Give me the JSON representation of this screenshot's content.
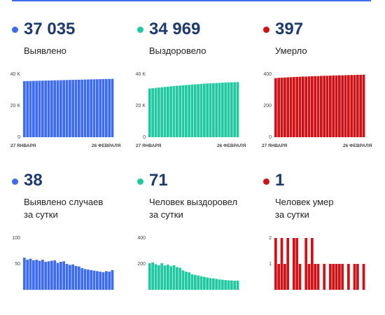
{
  "colors": {
    "blue": "#3d6cf0",
    "green": "#21c9a2",
    "red": "#d11116",
    "accent": "#3d6cf0",
    "number": "#1c3a6e"
  },
  "cards": [
    {
      "value": "37 035",
      "label_lines": [
        "Выявлено"
      ],
      "color": "#3d6cf0"
    },
    {
      "value": "34 969",
      "label_lines": [
        "Выздоровело"
      ],
      "color": "#21c9a2"
    },
    {
      "value": "397",
      "label_lines": [
        "Умерло"
      ],
      "color": "#d11116"
    },
    {
      "value": "38",
      "label_lines": [
        "Выявлено случаев",
        "за сутки"
      ],
      "color": "#3d6cf0"
    },
    {
      "value": "71",
      "label_lines": [
        "Человек выздоровел",
        "за сутки"
      ],
      "color": "#21c9a2"
    },
    {
      "value": "1",
      "label_lines": [
        "Человек умер",
        "за сутки"
      ],
      "color": "#d11116"
    }
  ],
  "chart_data": [
    {
      "type": "bar",
      "ylim": [
        0,
        40000
      ],
      "y_ticks": [
        "0",
        "20 K",
        "40 K"
      ],
      "x_ticks": [
        "27 ЯНВАРЯ",
        "26 ФЕВРАЛЯ"
      ],
      "values": [
        35600,
        35650,
        35700,
        35750,
        35800,
        35850,
        35900,
        35950,
        36000,
        36050,
        36100,
        36150,
        36200,
        36250,
        36300,
        36350,
        36400,
        36450,
        36500,
        36550,
        36600,
        36650,
        36700,
        36750,
        36800,
        36850,
        36900,
        36950,
        37000,
        37035
      ]
    },
    {
      "type": "bar",
      "ylim": [
        0,
        40000
      ],
      "y_ticks": [
        "0",
        "20 K",
        "40 K"
      ],
      "x_ticks": [
        "27 ЯНВАРЯ",
        "26 ФЕВРАЛЯ"
      ],
      "values": [
        30900,
        31100,
        31300,
        31500,
        31700,
        31900,
        32100,
        32300,
        32500,
        32650,
        32800,
        32950,
        33100,
        33250,
        33400,
        33550,
        33700,
        33850,
        34000,
        34100,
        34200,
        34300,
        34400,
        34500,
        34600,
        34700,
        34800,
        34870,
        34930,
        34969
      ]
    },
    {
      "type": "bar",
      "ylim": [
        0,
        400
      ],
      "y_ticks": [
        "0",
        "200",
        "400"
      ],
      "x_ticks": [
        "27 ЯНВАРЯ",
        "26 ФЕВРАЛЯ"
      ],
      "values": [
        375,
        377,
        378,
        379,
        380,
        381,
        382,
        383,
        384,
        385,
        385,
        386,
        387,
        388,
        388,
        389,
        390,
        390,
        391,
        392,
        392,
        393,
        393,
        394,
        394,
        395,
        395,
        396,
        396,
        397
      ]
    },
    {
      "type": "bar",
      "ylim": [
        0,
        100
      ],
      "y_ticks": [
        "50",
        "100"
      ],
      "x_ticks": [],
      "values": [
        62,
        58,
        60,
        57,
        58,
        56,
        58,
        54,
        55,
        56,
        57,
        52,
        54,
        55,
        50,
        48,
        49,
        46,
        45,
        42,
        40,
        39,
        38,
        37,
        36,
        35,
        34,
        36,
        35,
        38
      ]
    },
    {
      "type": "bar",
      "ylim": [
        0,
        400
      ],
      "y_ticks": [
        "200",
        "400"
      ],
      "x_ticks": [],
      "values": [
        205,
        212,
        198,
        190,
        205,
        188,
        195,
        182,
        190,
        175,
        170,
        150,
        140,
        135,
        120,
        115,
        110,
        105,
        100,
        95,
        90,
        88,
        84,
        80,
        78,
        75,
        73,
        72,
        70,
        71
      ]
    },
    {
      "type": "bar",
      "ylim": [
        0,
        2
      ],
      "y_ticks": [
        "1",
        "2"
      ],
      "x_ticks": [],
      "values": [
        2,
        1,
        2,
        1,
        2,
        0,
        2,
        2,
        1,
        0,
        2,
        1,
        2,
        1,
        1,
        0,
        1,
        0,
        1,
        1,
        1,
        1,
        1,
        0,
        1,
        0,
        1,
        1,
        0,
        1
      ]
    }
  ]
}
